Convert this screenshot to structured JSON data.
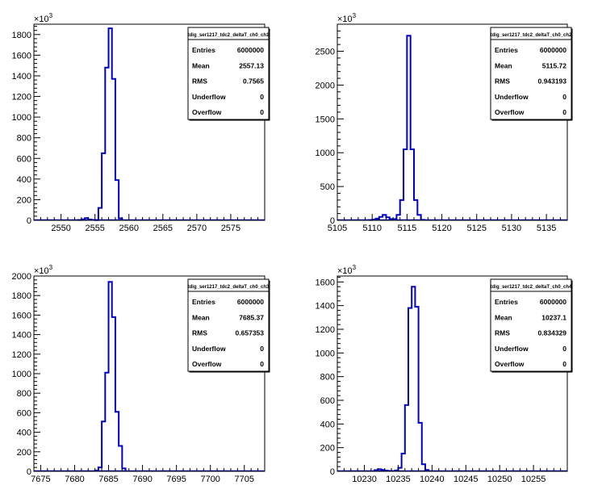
{
  "chart_data": [
    {
      "type": "bar",
      "histogram_name": "tdig_ser1217_tdc2_deltaT_ch0_ch1",
      "stats": [
        [
          "Entries",
          "6000000"
        ],
        [
          "Mean",
          "2557.13"
        ],
        [
          "RMS",
          "0.7565"
        ],
        [
          "Underflow",
          "0"
        ],
        [
          "Overflow",
          "0"
        ]
      ],
      "xlim": [
        2546,
        2580
      ],
      "ylim": [
        0,
        1900000
      ],
      "xticks": [
        2550,
        2555,
        2560,
        2565,
        2570,
        2575
      ],
      "yticks": [
        0,
        200,
        400,
        600,
        800,
        1000,
        1200,
        1400,
        1600,
        1800
      ],
      "y_exponent": "×10",
      "y_exponent_power": "3",
      "bin_width": 0.5,
      "bins": [
        [
          2552.5,
          3000
        ],
        [
          2553.0,
          10000
        ],
        [
          2553.5,
          22000
        ],
        [
          2554.0,
          8000
        ],
        [
          2554.5,
          4000
        ],
        [
          2555.0,
          2000
        ],
        [
          2555.5,
          120000
        ],
        [
          2556.0,
          650000
        ],
        [
          2556.5,
          1480000
        ],
        [
          2557.0,
          1860000
        ],
        [
          2557.5,
          1370000
        ],
        [
          2558.0,
          390000
        ],
        [
          2558.5,
          20000
        ]
      ],
      "color": "#0000cc"
    },
    {
      "type": "bar",
      "histogram_name": "tdig_ser1217_tdc2_deltaT_ch0_ch2",
      "stats": [
        [
          "Entries",
          "6000000"
        ],
        [
          "Mean",
          "5115.72"
        ],
        [
          "RMS",
          "0.943193"
        ],
        [
          "Underflow",
          "0"
        ],
        [
          "Overflow",
          "0"
        ]
      ],
      "xlim": [
        5105,
        5138
      ],
      "ylim": [
        0,
        2900000
      ],
      "xticks": [
        5105,
        5110,
        5115,
        5120,
        5125,
        5130,
        5135
      ],
      "yticks": [
        0,
        500,
        1000,
        1500,
        2000,
        2500
      ],
      "y_exponent": "×10",
      "y_exponent_power": "3",
      "bin_width": 0.5,
      "bins": [
        [
          5109.5,
          4000
        ],
        [
          5110.0,
          10000
        ],
        [
          5110.5,
          25000
        ],
        [
          5111.0,
          50000
        ],
        [
          5111.5,
          80000
        ],
        [
          5112.0,
          45000
        ],
        [
          5112.5,
          20000
        ],
        [
          5113.0,
          20000
        ],
        [
          5113.5,
          80000
        ],
        [
          5114.0,
          300000
        ],
        [
          5114.5,
          1050000
        ],
        [
          5115.0,
          2730000
        ],
        [
          5115.5,
          1050000
        ],
        [
          5116.0,
          300000
        ],
        [
          5116.5,
          80000
        ],
        [
          5117.0,
          8000
        ]
      ],
      "color": "#0000cc"
    },
    {
      "type": "bar",
      "histogram_name": "tdig_ser1217_tdc2_deltaT_ch0_ch3",
      "stats": [
        [
          "Entries",
          "6000000"
        ],
        [
          "Mean",
          "7685.37"
        ],
        [
          "RMS",
          "0.657353"
        ],
        [
          "Underflow",
          "0"
        ],
        [
          "Overflow",
          "0"
        ]
      ],
      "xlim": [
        7674,
        7708
      ],
      "ylim": [
        0,
        2000000
      ],
      "xticks": [
        7675,
        7680,
        7685,
        7690,
        7695,
        7700,
        7705
      ],
      "yticks": [
        0,
        200,
        400,
        600,
        800,
        1000,
        1200,
        1400,
        1600,
        1800,
        2000
      ],
      "y_exponent": "×10",
      "y_exponent_power": "3",
      "bin_width": 0.5,
      "bins": [
        [
          7683.0,
          8000
        ],
        [
          7683.5,
          40000
        ],
        [
          7684.0,
          510000
        ],
        [
          7684.5,
          1010000
        ],
        [
          7685.0,
          1940000
        ],
        [
          7685.5,
          1580000
        ],
        [
          7686.0,
          610000
        ],
        [
          7686.5,
          260000
        ],
        [
          7687.0,
          30000
        ]
      ],
      "color": "#0000cc"
    },
    {
      "type": "bar",
      "histogram_name": "tdig_ser1217_tdc2_deltaT_ch0_ch4",
      "stats": [
        [
          "Entries",
          "6000000"
        ],
        [
          "Mean",
          "10237.1"
        ],
        [
          "RMS",
          "0.834329"
        ],
        [
          "Underflow",
          "0"
        ],
        [
          "Overflow",
          "0"
        ]
      ],
      "xlim": [
        10226,
        10260
      ],
      "ylim": [
        0,
        1650000
      ],
      "xticks": [
        10230,
        10235,
        10240,
        10245,
        10250,
        10255
      ],
      "yticks": [
        0,
        200,
        400,
        600,
        800,
        1000,
        1200,
        1400,
        1600
      ],
      "y_exponent": "×10",
      "y_exponent_power": "3",
      "bin_width": 0.5,
      "bins": [
        [
          10231.5,
          10000
        ],
        [
          10232.0,
          18000
        ],
        [
          10232.5,
          12000
        ],
        [
          10233.0,
          6000
        ],
        [
          10233.5,
          3000
        ],
        [
          10234.5,
          8000
        ],
        [
          10235.0,
          30000
        ],
        [
          10235.5,
          150000
        ],
        [
          10236.0,
          560000
        ],
        [
          10236.5,
          1380000
        ],
        [
          10237.0,
          1560000
        ],
        [
          10237.5,
          1390000
        ],
        [
          10238.0,
          410000
        ],
        [
          10238.5,
          60000
        ],
        [
          10239.0,
          12000
        ]
      ],
      "color": "#0000cc"
    }
  ]
}
